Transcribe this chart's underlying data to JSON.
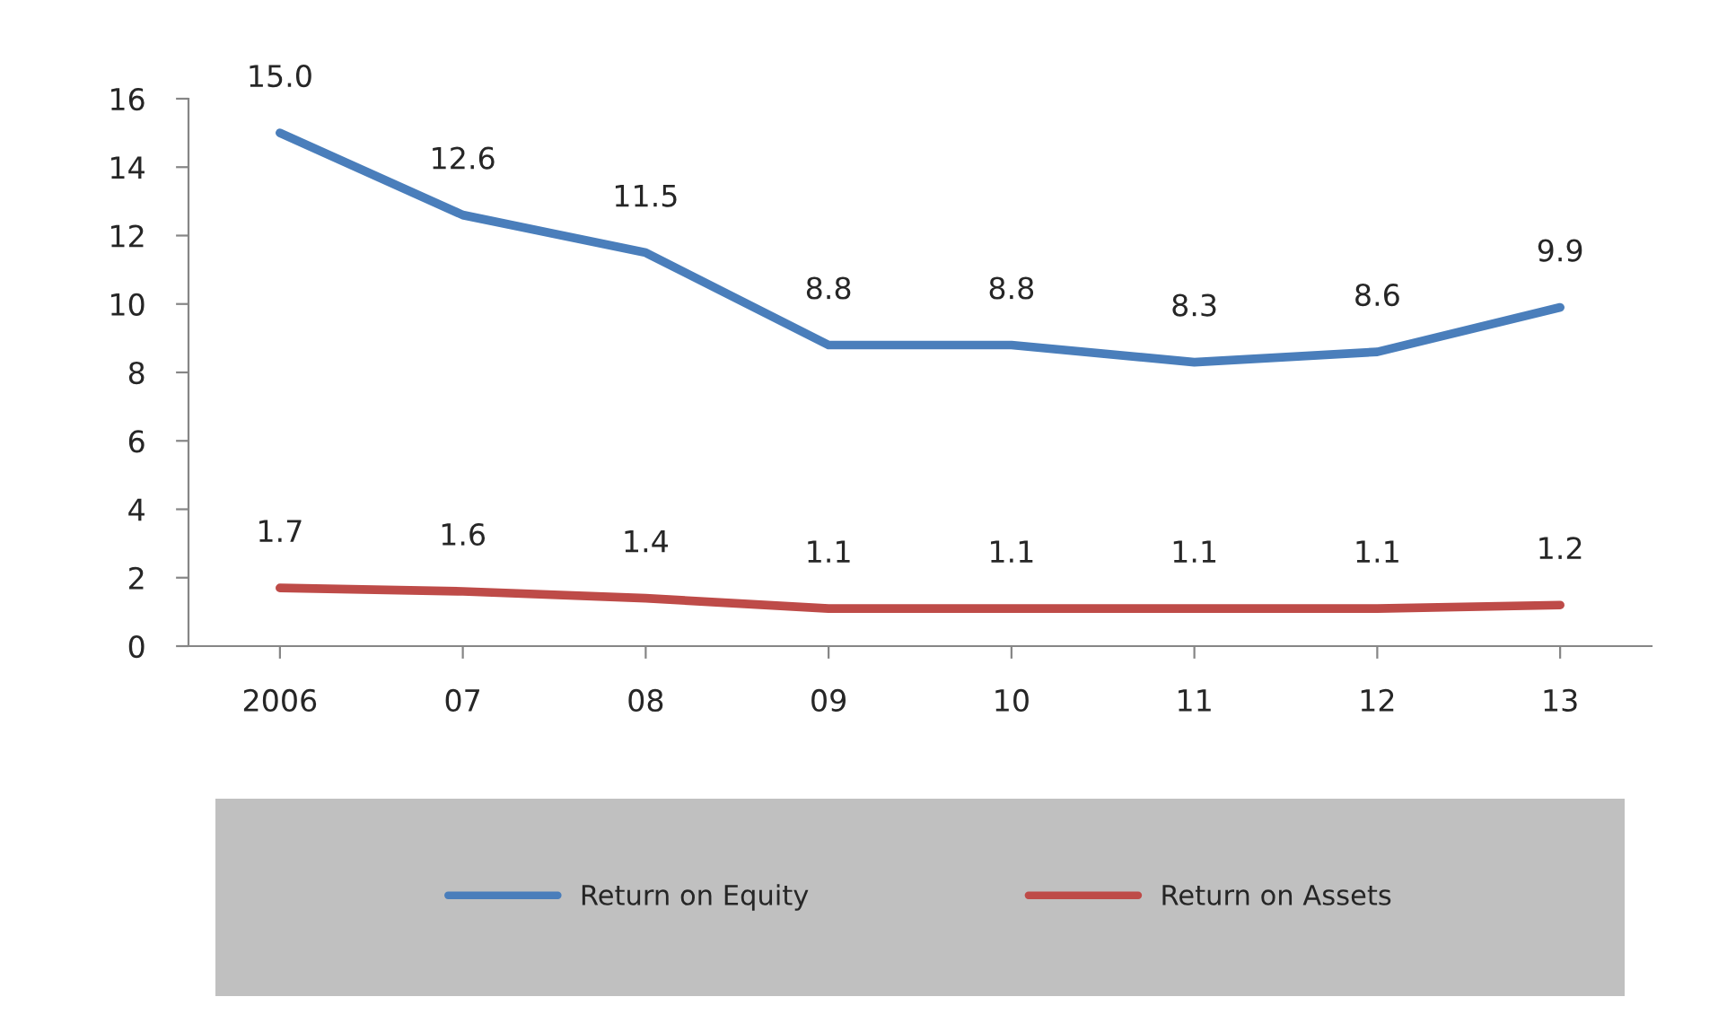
{
  "chart_data": {
    "type": "line",
    "categories": [
      "2006",
      "07",
      "08",
      "09",
      "10",
      "11",
      "12",
      "13"
    ],
    "series": [
      {
        "name": "Return on Equity",
        "color": "#4a7ebb",
        "values": [
          15.0,
          12.6,
          11.5,
          8.8,
          8.8,
          8.3,
          8.6,
          9.9
        ],
        "value_labels": [
          "15.0",
          "12.6",
          "11.5",
          "8.8",
          "8.8",
          "8.3",
          "8.6",
          "9.9"
        ]
      },
      {
        "name": "Return on Assets",
        "color": "#be4b48",
        "values": [
          1.7,
          1.6,
          1.4,
          1.1,
          1.1,
          1.1,
          1.1,
          1.2
        ],
        "value_labels": [
          "1.7",
          "1.6",
          "1.4",
          "1.1",
          "1.1",
          "1.1",
          "1.1",
          "1.2"
        ]
      }
    ],
    "ylim": [
      0,
      16
    ],
    "yticks": [
      0,
      2,
      4,
      6,
      8,
      10,
      12,
      14,
      16
    ],
    "grid": false,
    "legend": "bottom",
    "marker": "none",
    "line_style": "solid"
  }
}
